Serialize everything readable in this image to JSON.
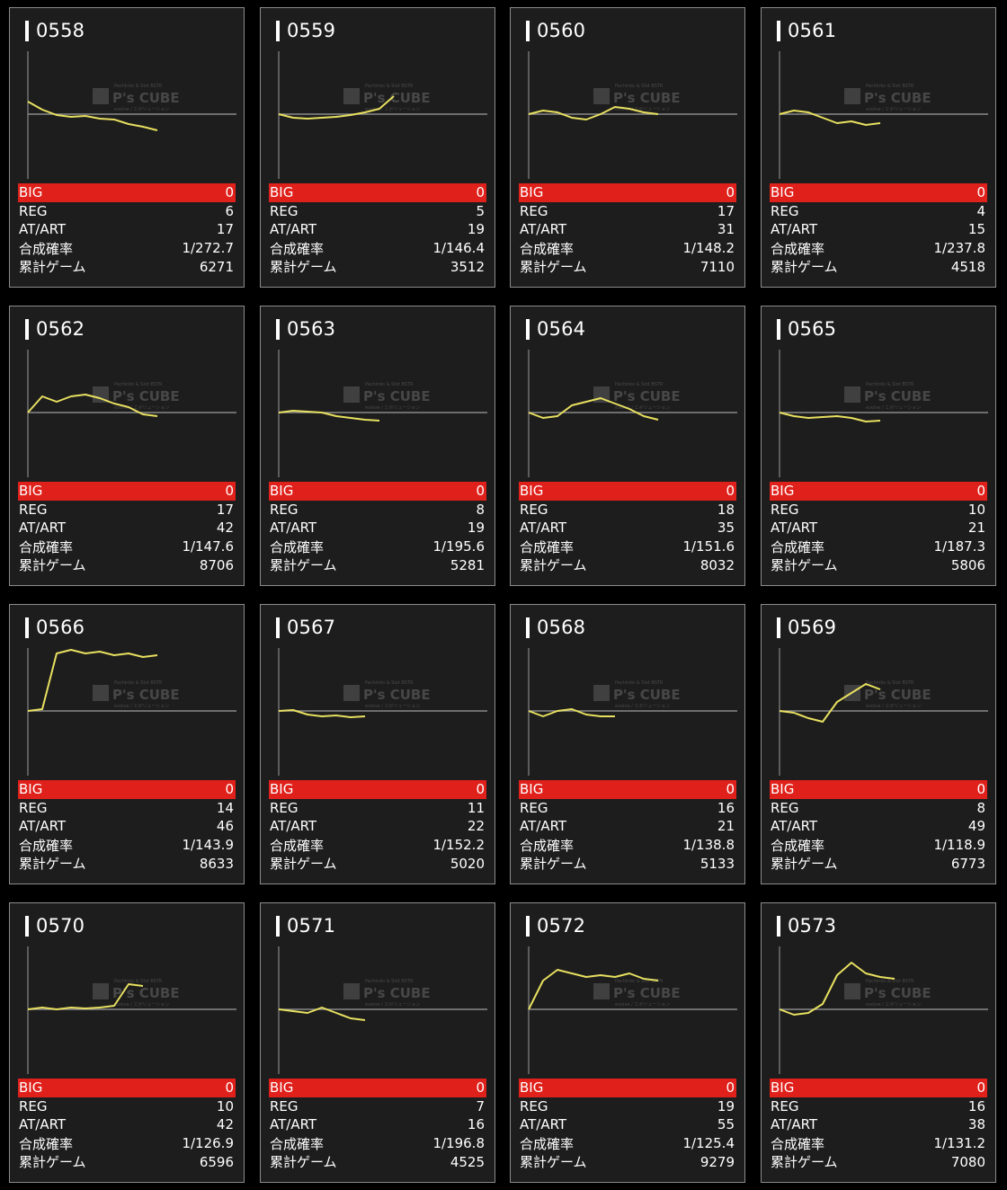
{
  "labels": {
    "big": "BIG",
    "reg": "REG",
    "atart": "AT/ART",
    "prob": "合成確率",
    "games": "累計ゲーム"
  },
  "watermark": {
    "brand": "P's CUBE",
    "line1": "Pachinko & Slot BSTR",
    "line2": "evolve / エボリューション"
  },
  "colors": {
    "card_bg": "#1d1d1d",
    "big_row": "#e0201a",
    "graph_line": "#e8e060",
    "baseline": "#8a8a8a"
  },
  "cards": [
    {
      "number": "0558",
      "big": "0",
      "reg": "6",
      "atart": "17",
      "prob": "1/272.7",
      "games": "6271",
      "line": [
        0.7,
        0.25,
        -0.05,
        -0.15,
        -0.1,
        -0.25,
        -0.3,
        -0.55,
        -0.7,
        -0.9
      ]
    },
    {
      "number": "0559",
      "big": "0",
      "reg": "5",
      "atart": "19",
      "prob": "1/146.4",
      "games": "3512",
      "line": [
        0,
        -0.2,
        -0.25,
        -0.2,
        -0.15,
        -0.05,
        0.1,
        0.3,
        1.0
      ]
    },
    {
      "number": "0560",
      "big": "0",
      "reg": "17",
      "atart": "31",
      "prob": "1/148.2",
      "games": "7110",
      "line": [
        0,
        0.2,
        0.1,
        -0.2,
        -0.3,
        0.0,
        0.4,
        0.3,
        0.1,
        0.0
      ]
    },
    {
      "number": "0561",
      "big": "0",
      "reg": "4",
      "atart": "15",
      "prob": "1/237.8",
      "games": "4518",
      "line": [
        0,
        0.2,
        0.1,
        -0.2,
        -0.5,
        -0.4,
        -0.6,
        -0.5
      ]
    },
    {
      "number": "0562",
      "big": "0",
      "reg": "17",
      "atart": "42",
      "prob": "1/147.6",
      "games": "8706",
      "line": [
        0,
        0.9,
        0.6,
        0.9,
        1.0,
        0.8,
        0.5,
        0.3,
        -0.1,
        -0.2
      ]
    },
    {
      "number": "0563",
      "big": "0",
      "reg": "8",
      "atart": "19",
      "prob": "1/195.6",
      "games": "5281",
      "line": [
        0,
        0.1,
        0.05,
        0.0,
        -0.2,
        -0.3,
        -0.4,
        -0.45
      ]
    },
    {
      "number": "0564",
      "big": "0",
      "reg": "18",
      "atart": "35",
      "prob": "1/151.6",
      "games": "8032",
      "line": [
        0,
        -0.3,
        -0.2,
        0.4,
        0.6,
        0.8,
        0.5,
        0.2,
        -0.2,
        -0.4
      ]
    },
    {
      "number": "0565",
      "big": "0",
      "reg": "10",
      "atart": "21",
      "prob": "1/187.3",
      "games": "5806",
      "line": [
        0,
        -0.2,
        -0.3,
        -0.25,
        -0.2,
        -0.3,
        -0.5,
        -0.45
      ]
    },
    {
      "number": "0566",
      "big": "0",
      "reg": "14",
      "atart": "46",
      "prob": "1/143.9",
      "games": "8633",
      "line": [
        0,
        0.1,
        3.2,
        3.4,
        3.2,
        3.3,
        3.1,
        3.2,
        3.0,
        3.1
      ]
    },
    {
      "number": "0567",
      "big": "0",
      "reg": "11",
      "atart": "22",
      "prob": "1/152.2",
      "games": "5020",
      "line": [
        0,
        0.05,
        -0.2,
        -0.3,
        -0.25,
        -0.35,
        -0.3
      ]
    },
    {
      "number": "0568",
      "big": "0",
      "reg": "16",
      "atart": "21",
      "prob": "1/138.8",
      "games": "5133",
      "line": [
        0,
        -0.3,
        0.0,
        0.1,
        -0.2,
        -0.3,
        -0.3
      ]
    },
    {
      "number": "0569",
      "big": "0",
      "reg": "8",
      "atart": "49",
      "prob": "1/118.9",
      "games": "6773",
      "line": [
        0,
        -0.1,
        -0.4,
        -0.6,
        0.5,
        1.0,
        1.5,
        1.2
      ]
    },
    {
      "number": "0570",
      "big": "0",
      "reg": "10",
      "atart": "42",
      "prob": "1/126.9",
      "games": "6596",
      "line": [
        0,
        0.1,
        0.0,
        0.1,
        0.05,
        0.1,
        0.2,
        1.4,
        1.3
      ]
    },
    {
      "number": "0571",
      "big": "0",
      "reg": "7",
      "atart": "16",
      "prob": "1/196.8",
      "games": "4525",
      "line": [
        0,
        -0.1,
        -0.2,
        0.1,
        -0.2,
        -0.5,
        -0.6
      ]
    },
    {
      "number": "0572",
      "big": "0",
      "reg": "19",
      "atart": "55",
      "prob": "1/125.4",
      "games": "9279",
      "line": [
        0,
        1.6,
        2.2,
        2.0,
        1.8,
        1.9,
        1.8,
        2.0,
        1.7,
        1.6
      ]
    },
    {
      "number": "0573",
      "big": "0",
      "reg": "16",
      "atart": "38",
      "prob": "1/131.2",
      "games": "7080",
      "line": [
        0,
        -0.3,
        -0.2,
        0.3,
        1.9,
        2.6,
        2.0,
        1.8,
        1.7
      ]
    }
  ]
}
